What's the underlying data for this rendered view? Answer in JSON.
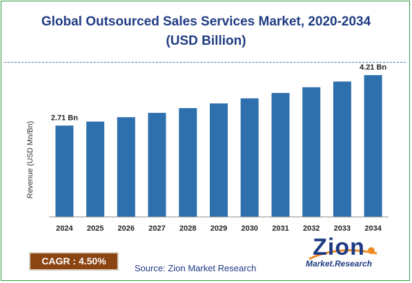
{
  "chart_data": {
    "type": "bar",
    "title": "Global Outsourced Sales Services Market, 2020-2034",
    "subtitle": "(USD Billion)",
    "ylabel": "Revenue (USD Mn/Bn)",
    "xlabel": "",
    "categories": [
      "2024",
      "2025",
      "2026",
      "2027",
      "2028",
      "2029",
      "2030",
      "2031",
      "2032",
      "2033",
      "2034"
    ],
    "values": [
      2.71,
      2.83,
      2.96,
      3.09,
      3.23,
      3.37,
      3.52,
      3.68,
      3.85,
      4.02,
      4.21
    ],
    "data_labels": [
      {
        "index": 0,
        "text": "2.71 Bn"
      },
      {
        "index": 10,
        "text": "4.21 Bn"
      }
    ],
    "ylim": [
      0,
      4.6
    ],
    "grid": false,
    "bar_color": "#2e6fad"
  },
  "cagr_label": "CAGR : 4.50%",
  "source_text": "Source: Zion Market Research",
  "logo": {
    "main": "Zion",
    "sub": "Market.Research"
  },
  "colors": {
    "title": "#1f3b82",
    "bar": "#2e6fad",
    "cagr_bg": "#8b4513",
    "border": "#2b9a3a"
  }
}
